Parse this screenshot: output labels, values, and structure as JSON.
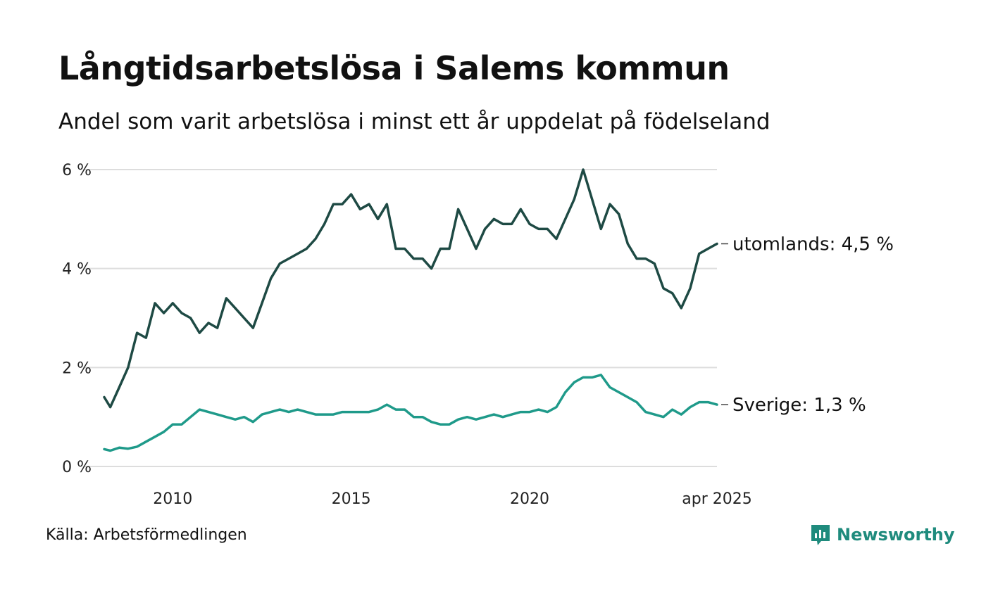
{
  "title": "Långtidsarbetslösa i Salems kommun",
  "subtitle": "Andel som varit arbetslösa i minst ett år uppdelat på födelseland",
  "source": "Källa: Arbetsförmedlingen",
  "brand": "Newsworthy",
  "colors": {
    "utomlands": "#1e4a44",
    "sverige": "#1f9a8a",
    "grid": "#dddddd",
    "brand": "#1f8b7d"
  },
  "chart_data": {
    "type": "line",
    "ylim": [
      0,
      6
    ],
    "y_ticks": [
      0,
      2,
      4,
      6
    ],
    "y_tick_labels": [
      "0 %",
      "2 %",
      "4 %",
      "6 %"
    ],
    "x_ticks": [
      2010,
      2015,
      2020,
      2025.25
    ],
    "x_tick_labels": [
      "2010",
      "2015",
      "2020",
      "apr 2025"
    ],
    "xlim": [
      2008.08,
      2025.25
    ],
    "grid": true,
    "series": [
      {
        "key": "utomlands",
        "end_label": "utomlands: 4,5 %",
        "x": [
          2008.08,
          2008.25,
          2008.5,
          2008.75,
          2009.0,
          2009.25,
          2009.5,
          2009.75,
          2010.0,
          2010.25,
          2010.5,
          2010.75,
          2011.0,
          2011.25,
          2011.5,
          2011.75,
          2012.0,
          2012.25,
          2012.5,
          2012.75,
          2013.0,
          2013.25,
          2013.5,
          2013.75,
          2014.0,
          2014.25,
          2014.5,
          2014.75,
          2015.0,
          2015.25,
          2015.5,
          2015.75,
          2016.0,
          2016.25,
          2016.5,
          2016.75,
          2017.0,
          2017.25,
          2017.5,
          2017.75,
          2018.0,
          2018.25,
          2018.5,
          2018.75,
          2019.0,
          2019.25,
          2019.5,
          2019.75,
          2020.0,
          2020.25,
          2020.5,
          2020.75,
          2021.0,
          2021.25,
          2021.5,
          2021.75,
          2022.0,
          2022.25,
          2022.5,
          2022.75,
          2023.0,
          2023.25,
          2023.5,
          2023.75,
          2024.0,
          2024.25,
          2024.5,
          2024.75,
          2025.0,
          2025.25
        ],
        "y": [
          1.4,
          1.2,
          1.6,
          2.0,
          2.7,
          2.6,
          3.3,
          3.1,
          3.3,
          3.1,
          3.0,
          2.7,
          2.9,
          2.8,
          3.4,
          3.2,
          3.0,
          2.8,
          3.3,
          3.8,
          4.1,
          4.2,
          4.3,
          4.4,
          4.6,
          4.9,
          5.3,
          5.3,
          5.5,
          5.2,
          5.3,
          5.0,
          5.3,
          4.4,
          4.4,
          4.2,
          4.2,
          4.0,
          4.4,
          4.4,
          5.2,
          4.8,
          4.4,
          4.8,
          5.0,
          4.9,
          4.9,
          5.2,
          4.9,
          4.8,
          4.8,
          4.6,
          5.0,
          5.4,
          6.0,
          5.4,
          4.8,
          5.3,
          5.1,
          4.5,
          4.2,
          4.2,
          4.1,
          3.6,
          3.5,
          3.2,
          3.6,
          4.3,
          4.4,
          4.5
        ]
      },
      {
        "key": "sverige",
        "end_label": "Sverige: 1,3 %",
        "x": [
          2008.08,
          2008.25,
          2008.5,
          2008.75,
          2009.0,
          2009.25,
          2009.5,
          2009.75,
          2010.0,
          2010.25,
          2010.5,
          2010.75,
          2011.0,
          2011.25,
          2011.5,
          2011.75,
          2012.0,
          2012.25,
          2012.5,
          2012.75,
          2013.0,
          2013.25,
          2013.5,
          2013.75,
          2014.0,
          2014.25,
          2014.5,
          2014.75,
          2015.0,
          2015.25,
          2015.5,
          2015.75,
          2016.0,
          2016.25,
          2016.5,
          2016.75,
          2017.0,
          2017.25,
          2017.5,
          2017.75,
          2018.0,
          2018.25,
          2018.5,
          2018.75,
          2019.0,
          2019.25,
          2019.5,
          2019.75,
          2020.0,
          2020.25,
          2020.5,
          2020.75,
          2021.0,
          2021.25,
          2021.5,
          2021.75,
          2022.0,
          2022.25,
          2022.5,
          2022.75,
          2023.0,
          2023.25,
          2023.5,
          2023.75,
          2024.0,
          2024.25,
          2024.5,
          2024.75,
          2025.0,
          2025.25
        ],
        "y": [
          0.35,
          0.32,
          0.38,
          0.36,
          0.4,
          0.5,
          0.6,
          0.7,
          0.85,
          0.85,
          1.0,
          1.15,
          1.1,
          1.05,
          1.0,
          0.95,
          1.0,
          0.9,
          1.05,
          1.1,
          1.15,
          1.1,
          1.15,
          1.1,
          1.05,
          1.05,
          1.05,
          1.1,
          1.1,
          1.1,
          1.1,
          1.15,
          1.25,
          1.15,
          1.15,
          1.0,
          1.0,
          0.9,
          0.85,
          0.85,
          0.95,
          1.0,
          0.95,
          1.0,
          1.05,
          1.0,
          1.05,
          1.1,
          1.1,
          1.15,
          1.1,
          1.2,
          1.5,
          1.7,
          1.8,
          1.8,
          1.85,
          1.6,
          1.5,
          1.4,
          1.3,
          1.1,
          1.05,
          1.0,
          1.15,
          1.05,
          1.2,
          1.3,
          1.3,
          1.25
        ]
      }
    ]
  }
}
